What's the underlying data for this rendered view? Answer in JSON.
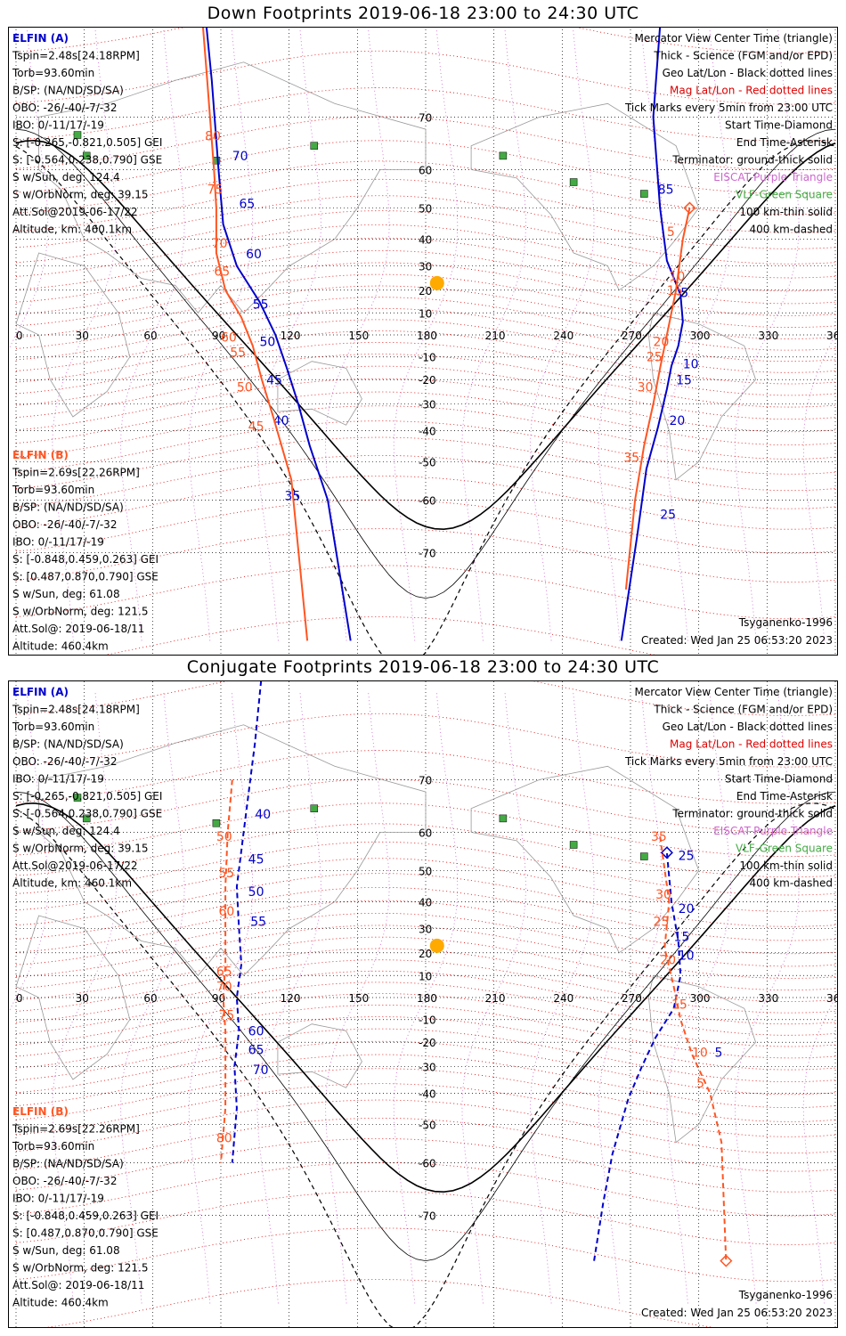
{
  "colors": {
    "elfin_a": "#0000cc",
    "elfin_b": "#ff5522",
    "mag": "#dd0000",
    "geo": "#000000",
    "sun": "#ffaa00",
    "vlf": "#44aa44",
    "ebscat": "#cc66cc"
  },
  "panels": [
    {
      "title": "Down Footprints 2019-06-18 23:00 to 24:30 UTC"
    },
    {
      "title": "Conjugate Footprints 2019-06-18 23:00 to 24:30 UTC"
    }
  ],
  "elfin_a": {
    "name": "ELFIN (A)",
    "lines": [
      "Tspin=2.48s[24.18RPM]",
      "Torb=93.60min",
      "B/SP: (NA/ND/SD/SA)",
      "OBO: -26/-40/-7/-32",
      "IBO: 0/-11/17/-19",
      "S: [-0.265,-0.821,0.505] GEI",
      "S: [-0.564,0.238,0.790] GSE",
      "S w/Sun, deg: 124.4",
      "S w/OrbNorm, deg: 39.15",
      "Att.Sol@2019-06-17/22",
      "Altitude, km: 460.1km"
    ]
  },
  "elfin_b": {
    "name": "ELFIN (B)",
    "lines": [
      "Tspin=2.69s[22.26RPM]",
      "Torb=93.60min",
      "B/SP: (NA/ND/SD/SA)",
      "OBO: -26/-40/-7/-32",
      "IBO: 0/-11/17/-19",
      "S: [-0.848,0.459,0.263] GEI",
      "S: [0.487,0.870,0.790] GSE",
      "S w/Sun, deg: 61.08",
      "S w/OrbNorm, deg: 121.5",
      "Att.Sol@: 2019-06-18/11",
      "Altitude: 460.4km"
    ]
  },
  "legend": {
    "lines": [
      "Mercator View Center Time (triangle)",
      "Thick - Science (FGM and/or EPD)",
      "Geo Lat/Lon - Black dotted lines",
      "Mag Lat/Lon - Red dotted lines",
      "Tick Marks every 5min from 23:00 UTC",
      "Start Time-Diamond",
      "End Time-Asterisk",
      "Terminator: ground-thick solid",
      "EISCAT-Purple Triangle",
      "VLF-Green Square",
      "100 km-thin solid",
      "400 km-dashed"
    ]
  },
  "model": "Tsyganenko-1996",
  "created": "Created: Wed Jan 25 06:53:20 2023",
  "chart_data": [
    {
      "type": "line",
      "title": "Down Footprints 2019-06-18 23:00 to 24:30 UTC",
      "xlim": [
        0,
        360
      ],
      "ylim": [
        -80,
        80
      ],
      "x_ticks": [
        0,
        30,
        60,
        90,
        120,
        150,
        180,
        210,
        240,
        270,
        300,
        330,
        360
      ],
      "y_ticks": [
        70,
        60,
        50,
        40,
        30,
        20,
        10,
        -10,
        -20,
        -30,
        -40,
        -50,
        -60,
        -70
      ],
      "series": [
        {
          "name": "ELFIN (A)",
          "segments": [
            [
              [
                81,
                90
              ],
              [
                86,
                75
              ],
              [
                89,
                60
              ],
              [
                91,
                45
              ],
              [
                97,
                30
              ],
              [
                107,
                15
              ],
              [
                114,
                0
              ],
              [
                119,
                -15
              ],
              [
                124,
                -30
              ],
              [
                129,
                -45
              ],
              [
                137,
                -60
              ],
              [
                147,
                -80
              ]
            ],
            [
              [
                266,
                -80
              ],
              [
                273,
                -67
              ],
              [
                277,
                -52
              ],
              [
                282,
                -39
              ],
              [
                286,
                -24
              ],
              [
                288,
                -14
              ],
              [
                291,
                -5
              ],
              [
                293,
                6
              ],
              [
                292,
                18
              ],
              [
                286,
                32
              ],
              [
                283,
                50
              ],
              [
                280,
                70
              ],
              [
                285,
                86
              ]
            ]
          ],
          "ticks": [
            [
              "80",
              287,
              84
            ],
            [
              "85",
              282,
              54
            ],
            [
              "5",
              292,
              17
            ],
            [
              "10",
              293,
              -15
            ],
            [
              "15",
              290,
              -22
            ],
            [
              "20",
              287,
              -38
            ],
            [
              "25",
              283,
              -64
            ],
            [
              "70",
              95,
              62
            ],
            [
              "65",
              98,
              50
            ],
            [
              "60",
              101,
              33
            ],
            [
              "55",
              104,
              12
            ],
            [
              "50",
              107,
              -5
            ],
            [
              "45",
              110,
              -22
            ],
            [
              "40",
              113,
              -38
            ],
            [
              "35",
              118,
              -60
            ]
          ]
        },
        {
          "name": "ELFIN (B)",
          "segments": [
            [
              [
                80,
                90
              ],
              [
                84,
                75
              ],
              [
                87,
                60
              ],
              [
                88,
                50
              ],
              [
                88,
                35
              ],
              [
                92,
                20
              ],
              [
                99,
                8
              ],
              [
                104,
                -5
              ],
              [
                108,
                -20
              ],
              [
                113,
                -35
              ],
              [
                121,
                -55
              ],
              [
                128,
                -80
              ]
            ],
            [
              [
                268,
                -75
              ],
              [
                272,
                -60
              ],
              [
                276,
                -45
              ],
              [
                280,
                -30
              ],
              [
                283,
                -15
              ],
              [
                286,
                0
              ],
              [
                290,
                20
              ],
              [
                293,
                40
              ],
              [
                296,
                50
              ]
            ]
          ],
          "ticks": [
            [
              "80",
              83,
              66
            ],
            [
              "75",
              84,
              54
            ],
            [
              "70",
              86,
              37
            ],
            [
              "65",
              87,
              26
            ],
            [
              "60",
              90,
              -3
            ],
            [
              "55",
              94,
              -10
            ],
            [
              "50",
              97,
              -25
            ],
            [
              "45",
              102,
              -40
            ],
            [
              "5",
              286,
              41
            ],
            [
              "10",
              287,
              24
            ],
            [
              "15",
              286,
              18
            ],
            [
              "20",
              280,
              -5
            ],
            [
              "25",
              277,
              -12
            ],
            [
              "30",
              273,
              -25
            ],
            [
              "35",
              267,
              -50
            ]
          ]
        }
      ]
    },
    {
      "type": "line",
      "title": "Conjugate Footprints 2019-06-18 23:00 to 24:30 UTC",
      "xlim": [
        0,
        360
      ],
      "ylim": [
        -80,
        80
      ],
      "x_ticks": [
        0,
        30,
        60,
        90,
        120,
        150,
        180,
        210,
        240,
        270,
        300,
        330,
        360
      ],
      "y_ticks": [
        70,
        60,
        50,
        40,
        30,
        20,
        10,
        -10,
        -20,
        -30,
        -40,
        -50,
        -60,
        -70
      ],
      "series": [
        {
          "name": "ELFIN (A)",
          "segments": [
            [
              [
                110,
                87
              ],
              [
                105,
                75
              ],
              [
                100,
                60
              ],
              [
                97,
                45
              ],
              [
                98,
                30
              ],
              [
                99,
                15
              ],
              [
                97,
                0
              ],
              [
                98,
                -15
              ],
              [
                96,
                -30
              ],
              [
                97,
                -45
              ],
              [
                95,
                -60
              ]
            ],
            [
              [
                254,
                -76
              ],
              [
                258,
                -68
              ],
              [
                262,
                -58
              ],
              [
                269,
                -42
              ],
              [
                275,
                -30
              ],
              [
                281,
                -18
              ],
              [
                289,
                -5
              ],
              [
                292,
                10
              ],
              [
                291,
                25
              ],
              [
                288,
                40
              ],
              [
                286,
                55
              ]
            ]
          ],
          "ticks": [
            [
              "40",
              105,
              63
            ],
            [
              "45",
              102,
              52
            ],
            [
              "50",
              102,
              42
            ],
            [
              "55",
              103,
              31
            ],
            [
              "60",
              102,
              -17
            ],
            [
              "65",
              102,
              -25
            ],
            [
              "70",
              104,
              -33
            ],
            [
              "25",
              291,
              53
            ],
            [
              "20",
              291,
              36
            ],
            [
              "15",
              289,
              25
            ],
            [
              "10",
              291,
              17
            ],
            [
              "5",
              307,
              -26
            ]
          ]
        },
        {
          "name": "ELFIN (B)",
          "segments": [
            [
              [
                95,
                70
              ],
              [
                93,
                60
              ],
              [
                92,
                45
              ],
              [
                92,
                30
              ],
              [
                92,
                15
              ],
              [
                91,
                0
              ],
              [
                92,
                -15
              ],
              [
                92,
                -30
              ],
              [
                92,
                -45
              ],
              [
                90,
                -60
              ]
            ],
            [
              [
                283,
                59
              ],
              [
                287,
                40
              ],
              [
                285,
                22
              ],
              [
                289,
                5
              ],
              [
                292,
                -10
              ],
              [
                297,
                -25
              ],
              [
                305,
                -40
              ],
              [
                310,
                -55
              ],
              [
                312,
                -76
              ]
            ]
          ],
          "ticks": [
            [
              "50",
              88,
              58
            ],
            [
              "55",
              89,
              48
            ],
            [
              "60",
              89,
              35
            ],
            [
              "65",
              88,
              10
            ],
            [
              "70",
              88,
              3
            ],
            [
              "75",
              89,
              -10
            ],
            [
              "80",
              88,
              -55
            ],
            [
              "35",
              279,
              58
            ],
            [
              "30",
              281,
              41
            ],
            [
              "25",
              280,
              31
            ],
            [
              "20",
              283,
              15
            ],
            [
              "15",
              288,
              -5
            ],
            [
              "10",
              297,
              -26
            ],
            [
              "5",
              299,
              -38
            ]
          ]
        }
      ]
    }
  ],
  "pages": [
    {
      "title_top": 8,
      "y_frame": [
        28,
        733
      ]
    },
    {
      "title_top": 740,
      "y_frame": [
        763,
        1490
      ]
    }
  ]
}
